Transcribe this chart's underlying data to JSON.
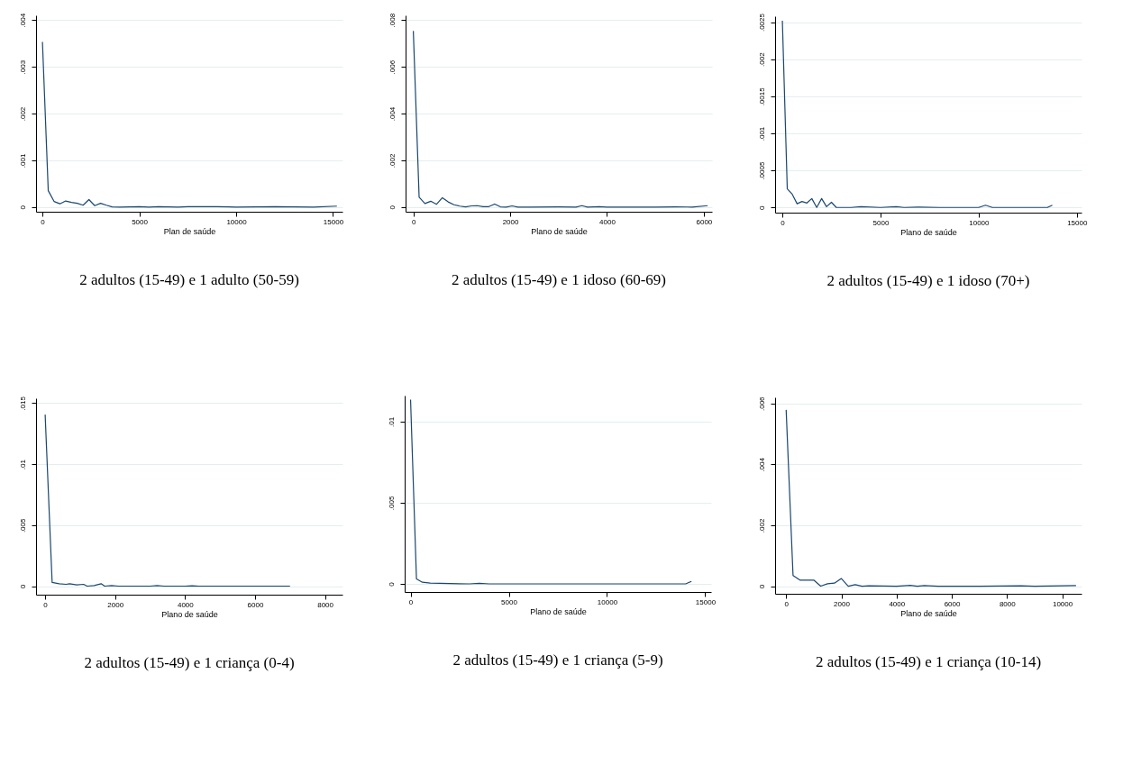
{
  "chart_data": [
    {
      "type": "line",
      "title": "2 adultos (15-49) e 1 adulto (50-59)",
      "xlabel": "Plan de saúde",
      "x": [
        0,
        300,
        600,
        900,
        1200,
        1500,
        1800,
        2100,
        2400,
        2700,
        3000,
        3300,
        3600,
        4000,
        5000,
        5500,
        6000,
        7000,
        7500,
        9000,
        10000,
        12000,
        14000,
        15200
      ],
      "series": [
        {
          "color": "#1a476f",
          "values": [
            0.00353,
            0.00035,
            0.00012,
            7e-05,
            0.00013,
            0.0001,
            8e-05,
            4e-05,
            0.00016,
            3e-05,
            8e-05,
            4e-05,
            5e-06,
            0,
            1e-05,
            0,
            1e-05,
            0,
            1e-05,
            1e-05,
            0,
            1e-05,
            0,
            2e-05
          ]
        }
      ],
      "xlim": [
        -330,
        15490
      ],
      "ylim": [
        -0.0001,
        0.0041
      ],
      "xticks": [
        0,
        5000,
        10000,
        15000
      ],
      "yticks": [
        {
          "value": 0,
          "label": "0"
        },
        {
          "value": 0.001,
          "label": ".001"
        },
        {
          "value": 0.002,
          "label": ".002"
        },
        {
          "value": 0.003,
          "label": ".003"
        },
        {
          "value": 0.004,
          "label": ".004"
        }
      ],
      "grid": "y"
    },
    {
      "type": "line",
      "title": "2 adultos (15-49) e 1 idoso (60-69)",
      "xlabel": "Plano de saúde",
      "x": [
        0,
        120,
        240,
        360,
        480,
        600,
        720,
        840,
        960,
        1080,
        1200,
        1320,
        1440,
        1560,
        1680,
        1800,
        1920,
        2040,
        2160,
        2400,
        3000,
        3360,
        3480,
        3600,
        3840,
        4000,
        5000,
        5400,
        5760,
        6080
      ],
      "series": [
        {
          "color": "#1a476f",
          "values": [
            0.00753,
            0.00042,
            0.00015,
            0.00025,
            0.00012,
            0.0004,
            0.00022,
            0.0001,
            4e-05,
            1e-05,
            5e-05,
            6e-05,
            2e-05,
            2e-05,
            0.00013,
            1e-05,
            0,
            5e-05,
            0,
            0,
            1e-05,
            0,
            6e-05,
            0,
            2e-05,
            0,
            0,
            1e-05,
            0,
            6e-05
          ]
        }
      ],
      "xlim": [
        -160,
        6170
      ],
      "ylim": [
        -0.0002,
        0.0082
      ],
      "xticks": [
        0,
        2000,
        4000,
        6000
      ],
      "yticks": [
        {
          "value": 0,
          "label": "0"
        },
        {
          "value": 0.002,
          "label": ".002"
        },
        {
          "value": 0.004,
          "label": ".004"
        },
        {
          "value": 0.006,
          "label": ".006"
        },
        {
          "value": 0.008,
          "label": ".008"
        }
      ],
      "grid": "y"
    },
    {
      "type": "line",
      "title": "2 adultos (15-49) e 1 idoso (70+)",
      "xlabel": "Plano de saúde",
      "x": [
        0,
        250,
        500,
        750,
        1000,
        1250,
        1500,
        1750,
        2000,
        2250,
        2500,
        2750,
        3500,
        4000,
        5000,
        5800,
        6200,
        7000,
        8000,
        10000,
        10350,
        10700,
        13500,
        13750
      ],
      "series": [
        {
          "color": "#1a476f",
          "values": [
            0.00252,
            0.00025,
            0.00018,
            5e-05,
            8e-05,
            6e-05,
            0.00012,
            0,
            0.00012,
            1e-05,
            7e-05,
            0,
            0,
            1e-05,
            0,
            1e-05,
            0,
            5e-06,
            0,
            0,
            3e-05,
            0,
            0,
            3e-05
          ]
        }
      ],
      "xlim": [
        -370,
        15240
      ],
      "ylim": [
        -7e-05,
        0.00258
      ],
      "xticks": [
        0,
        5000,
        10000,
        15000
      ],
      "yticks": [
        {
          "value": 0,
          "label": "0"
        },
        {
          "value": 0.0005,
          "label": ".0005"
        },
        {
          "value": 0.001,
          "label": ".001"
        },
        {
          "value": 0.0015,
          "label": ".0015"
        },
        {
          "value": 0.002,
          "label": ".002"
        },
        {
          "value": 0.0025,
          "label": ".0025"
        }
      ],
      "grid": "y"
    },
    {
      "type": "line",
      "title": "2 adultos (15-49) e 1 criança (0-4)",
      "xlabel": "Plano de saúde",
      "x": [
        0,
        200,
        400,
        600,
        700,
        900,
        1100,
        1200,
        1400,
        1600,
        1700,
        1900,
        2100,
        3000,
        3200,
        3400,
        4000,
        4200,
        4400,
        7000
      ],
      "series": [
        {
          "color": "#1a476f",
          "values": [
            0.01406,
            0.0003,
            0.0002,
            0.00015,
            0.0002,
            0.0001,
            0.00015,
            0,
            5e-05,
            0.0002,
            0,
            5e-05,
            0,
            0,
            5e-05,
            0,
            0,
            3e-05,
            0,
            0
          ]
        }
      ],
      "xlim": [
        -260,
        8500
      ],
      "ylim": [
        -0.0007,
        0.0154
      ],
      "xticks": [
        0,
        2000,
        4000,
        6000,
        8000
      ],
      "yticks": [
        {
          "value": 0,
          "label": "0"
        },
        {
          "value": 0.005,
          "label": ".005"
        },
        {
          "value": 0.01,
          "label": ".01"
        },
        {
          "value": 0.015,
          "label": ".015"
        }
      ],
      "grid": "y"
    },
    {
      "type": "line",
      "title": "2 adultos (15-49) e 1 criança (5-9)",
      "xlabel": "Plano de saúde",
      "x": [
        0,
        300,
        600,
        1000,
        2000,
        3000,
        3500,
        4000,
        14000,
        14300
      ],
      "series": [
        {
          "color": "#1a476f",
          "values": [
            0.01135,
            0.0003,
            0.0001,
            5e-05,
            2e-05,
            0,
            3e-05,
            0,
            0,
            0.00015
          ]
        }
      ],
      "xlim": [
        -300,
        15300
      ],
      "ylim": [
        -0.0005,
        0.0116
      ],
      "xticks": [
        0,
        5000,
        10000,
        15000
      ],
      "yticks": [
        {
          "value": 0,
          "label": "0"
        },
        {
          "value": 0.005,
          "label": ".005"
        },
        {
          "value": 0.01,
          "label": ".01"
        }
      ],
      "grid": "y"
    },
    {
      "type": "line",
      "title": "2 adultos (15-49) e 1 criança (10-14)",
      "xlabel": "Plano de saúde",
      "x": [
        0,
        250,
        500,
        750,
        1000,
        1250,
        1500,
        1750,
        2000,
        2250,
        2500,
        2750,
        3000,
        4000,
        4500,
        4750,
        5000,
        5500,
        7000,
        8500,
        9000,
        10500
      ],
      "series": [
        {
          "color": "#1a476f",
          "values": [
            0.00579,
            0.00035,
            0.0002,
            0.0002,
            0.0002,
            0,
            8e-05,
            0.0001,
            0.00025,
            0,
            5e-05,
            0,
            1e-05,
            0,
            3e-05,
            0,
            2e-05,
            0,
            0,
            1e-05,
            0,
            2e-05
          ]
        }
      ],
      "xlim": [
        -400,
        10700
      ],
      "ylim": [
        -0.00025,
        0.0062
      ],
      "xticks": [
        0,
        2000,
        4000,
        6000,
        8000,
        10000
      ],
      "yticks": [
        {
          "value": 0,
          "label": "0"
        },
        {
          "value": 0.002,
          "label": ".002"
        },
        {
          "value": 0.004,
          "label": ".004"
        },
        {
          "value": 0.006,
          "label": ".006"
        }
      ],
      "grid": "y"
    }
  ]
}
